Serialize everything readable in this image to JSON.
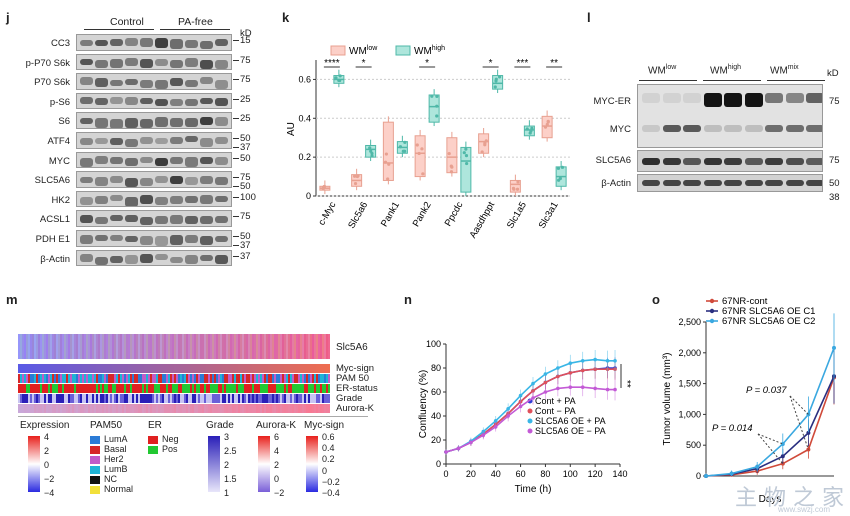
{
  "panel_j": {
    "label": "j",
    "groups": [
      "Control",
      "PA-free"
    ],
    "unit": "kD",
    "rows": [
      {
        "name": "CC3",
        "kd": [
          "15"
        ]
      },
      {
        "name": "p-P70 S6k",
        "kd": [
          "75"
        ]
      },
      {
        "name": "P70 S6k",
        "kd": [
          "75"
        ]
      },
      {
        "name": "p-S6",
        "kd": [
          "25"
        ]
      },
      {
        "name": "S6",
        "kd": [
          "25"
        ]
      },
      {
        "name": "ATF4",
        "kd": [
          "50",
          "37"
        ]
      },
      {
        "name": "MYC",
        "kd": [
          "50"
        ]
      },
      {
        "name": "SLC5A6",
        "kd": [
          "75",
          "50"
        ]
      },
      {
        "name": "HK2",
        "kd": [
          "100"
        ]
      },
      {
        "name": "ACSL1",
        "kd": [
          "75"
        ]
      },
      {
        "name": "PDH E1",
        "kd": [
          "50",
          "37"
        ]
      },
      {
        "name": "β-Actin",
        "kd": [
          "37"
        ]
      }
    ]
  },
  "panel_k": {
    "label": "k",
    "legend": [
      "WM",
      "WM"
    ],
    "legend_sup": [
      "low",
      "high"
    ],
    "ylabel": "AU",
    "yticks": [
      "0",
      "0.2",
      "0.4",
      "0.6"
    ],
    "categories": [
      "c-Myc",
      "Slc5a6",
      "Pank1",
      "Pank2",
      "Ppcdc",
      "Aasdhppt",
      "Slc1a5",
      "Slc3a1"
    ],
    "significance": [
      "****",
      "*",
      "",
      "*",
      "",
      "*",
      "***",
      "**"
    ]
  },
  "panel_l": {
    "label": "l",
    "groups": [
      "WM",
      "WM",
      "WM"
    ],
    "groups_sup": [
      "low",
      "high",
      "mix"
    ],
    "unit": "kD",
    "rows": [
      {
        "name": "MYC-ER",
        "kd": "75"
      },
      {
        "name": "MYC",
        "kd": ""
      },
      {
        "name": "SLC5A6",
        "kd": "75"
      },
      {
        "name": "β-Actin",
        "kd": "50"
      }
    ],
    "extra_kd": "38"
  },
  "panel_m": {
    "label": "m",
    "heat_label": "Slc5A6",
    "track_labels": [
      "Myc-sign",
      "PAM 50",
      "ER-status",
      "Grade",
      "Aurora-K"
    ],
    "legend": {
      "expression": {
        "title": "Expression",
        "ticks": [
          "4",
          "2",
          "0",
          "−2",
          "−4"
        ]
      },
      "pam50": {
        "title": "PAM50",
        "items": [
          "LumA",
          "Basal",
          "Her2",
          "LumB",
          "NC",
          "Normal"
        ],
        "colors": [
          "#2b7bd6",
          "#d62728",
          "#c05cc8",
          "#1fb3d6",
          "#111111",
          "#f2e03a"
        ]
      },
      "er": {
        "title": "ER",
        "items": [
          "Neg",
          "Pos"
        ],
        "colors": [
          "#e02020",
          "#22c832"
        ]
      },
      "grade": {
        "title": "Grade",
        "ticks": [
          "3",
          "2.5",
          "2",
          "1.5",
          "1"
        ]
      },
      "aurora": {
        "title": "Aurora-K",
        "ticks": [
          "6",
          "4",
          "2",
          "0",
          "−2"
        ]
      },
      "myc": {
        "title": "Myc-sign",
        "ticks": [
          "0.6",
          "0.4",
          "0.2",
          "0",
          "−0.2",
          "−0.4"
        ]
      }
    }
  },
  "panel_n": {
    "label": "n",
    "significance": "**"
  },
  "panel_o": {
    "label": "o",
    "p_values": [
      "P = 0.037",
      "P = 0.014"
    ]
  },
  "watermark": {
    "text": "主 物 之 家",
    "url": "www.swzj.com"
  },
  "chart_data": [
    {
      "type": "line",
      "panel": "n",
      "xlabel": "Time (h)",
      "ylabel": "Confluency (%)",
      "xlim": [
        0,
        140
      ],
      "ylim": [
        0,
        100
      ],
      "xticks": [
        0,
        20,
        40,
        60,
        80,
        100,
        120,
        140
      ],
      "yticks": [
        0,
        20,
        40,
        60,
        80,
        100
      ],
      "x": [
        0,
        10,
        20,
        30,
        40,
        50,
        60,
        70,
        80,
        90,
        100,
        110,
        120,
        130,
        136
      ],
      "series": [
        {
          "name": "Cont + PA",
          "color": "#2d3fd6",
          "values": [
            10,
            13,
            18,
            25,
            33,
            42,
            52,
            61,
            68,
            73,
            76,
            78,
            79,
            80,
            80
          ]
        },
        {
          "name": "Cont − PA",
          "color": "#e0505a",
          "values": [
            10,
            13,
            18,
            25,
            33,
            42,
            52,
            61,
            68,
            73,
            76,
            78,
            79,
            79,
            79
          ]
        },
        {
          "name": "SLC5A6 OE + PA",
          "color": "#39b6e6",
          "values": [
            10,
            13,
            19,
            27,
            36,
            46,
            57,
            67,
            75,
            80,
            84,
            86,
            87,
            86,
            86
          ]
        },
        {
          "name": "SLC5A6 OE − PA",
          "color": "#c35ad6",
          "values": [
            10,
            13,
            18,
            24,
            31,
            40,
            48,
            55,
            60,
            63,
            64,
            64,
            63,
            62,
            62
          ]
        }
      ]
    },
    {
      "type": "line",
      "panel": "o",
      "xlabel": "Days",
      "ylabel": "Tumor volume (mm³)",
      "xlim": [
        0,
        25
      ],
      "ylim": [
        0,
        2500
      ],
      "yticks": [
        0,
        500,
        1000,
        1500,
        2000,
        2500
      ],
      "x": [
        0,
        5,
        10,
        15,
        20,
        25
      ],
      "series": [
        {
          "name": "67NR-cont",
          "color": "#d04a3a",
          "values": [
            0,
            20,
            80,
            200,
            430,
            1600
          ]
        },
        {
          "name": "67NR SLC5A6 OE C1",
          "color": "#2a2f80",
          "values": [
            0,
            30,
            120,
            320,
            700,
            1620
          ]
        },
        {
          "name": "67NR SLC5A6 OE C2",
          "color": "#3aa8e0",
          "values": [
            0,
            40,
            150,
            520,
            1000,
            2080
          ]
        }
      ]
    }
  ]
}
